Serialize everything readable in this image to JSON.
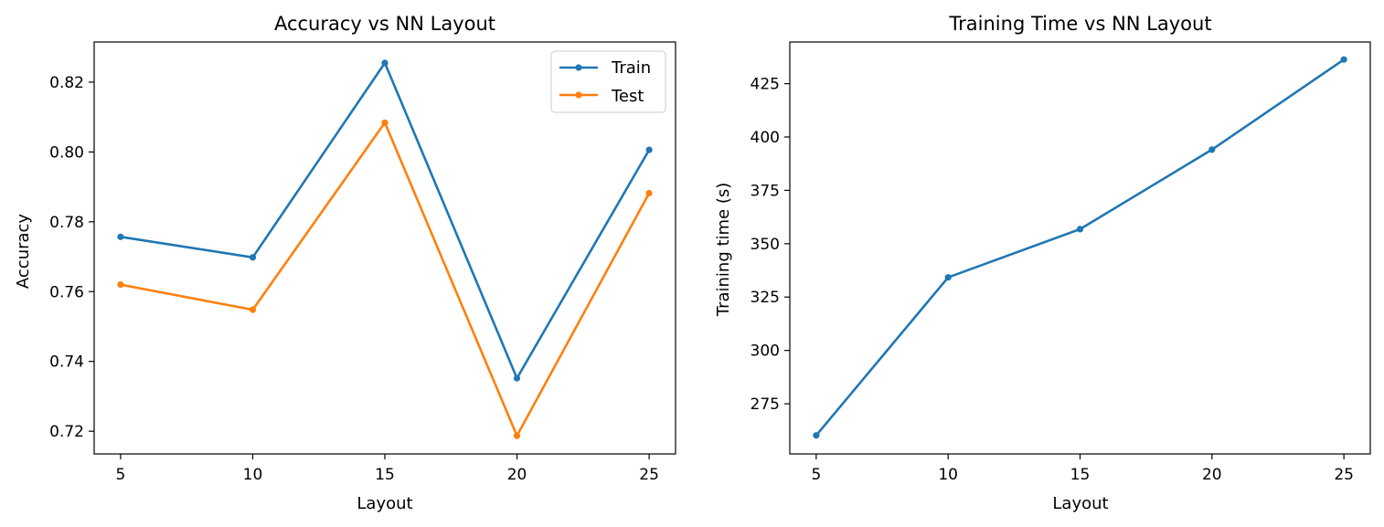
{
  "chart_data": [
    {
      "type": "line",
      "title": "Accuracy vs NN Layout",
      "xlabel": "Layout",
      "ylabel": "Accuracy",
      "x": [
        5,
        10,
        15,
        20,
        25
      ],
      "xticks": [
        "5",
        "10",
        "15",
        "20",
        "25"
      ],
      "yticks": [
        "0.72",
        "0.74",
        "0.76",
        "0.78",
        "0.80",
        "0.82"
      ],
      "xlim": [
        4,
        26
      ],
      "ylim": [
        0.7135,
        0.8315
      ],
      "grid": false,
      "legend": "top-right",
      "series": [
        {
          "name": "Train",
          "color": "#1f77b4",
          "values": [
            0.7757,
            0.7698,
            0.8255,
            0.7352,
            0.8006
          ]
        },
        {
          "name": "Test",
          "color": "#ff7f0e",
          "values": [
            0.762,
            0.7548,
            0.8084,
            0.7187,
            0.7882
          ]
        }
      ]
    },
    {
      "type": "line",
      "title": "Training Time vs NN Layout",
      "xlabel": "Layout",
      "ylabel": "Training time (s)",
      "x": [
        5,
        10,
        15,
        20,
        25
      ],
      "xticks": [
        "5",
        "10",
        "15",
        "20",
        "25"
      ],
      "yticks": [
        "275",
        "300",
        "325",
        "350",
        "375",
        "400",
        "425"
      ],
      "xlim": [
        4,
        26
      ],
      "ylim": [
        251.5,
        444.5
      ],
      "grid": false,
      "legend": "none",
      "series": [
        {
          "color": "#1f77b4",
          "values": [
            260.2,
            334.2,
            356.8,
            394.1,
            436.3
          ]
        }
      ]
    }
  ]
}
